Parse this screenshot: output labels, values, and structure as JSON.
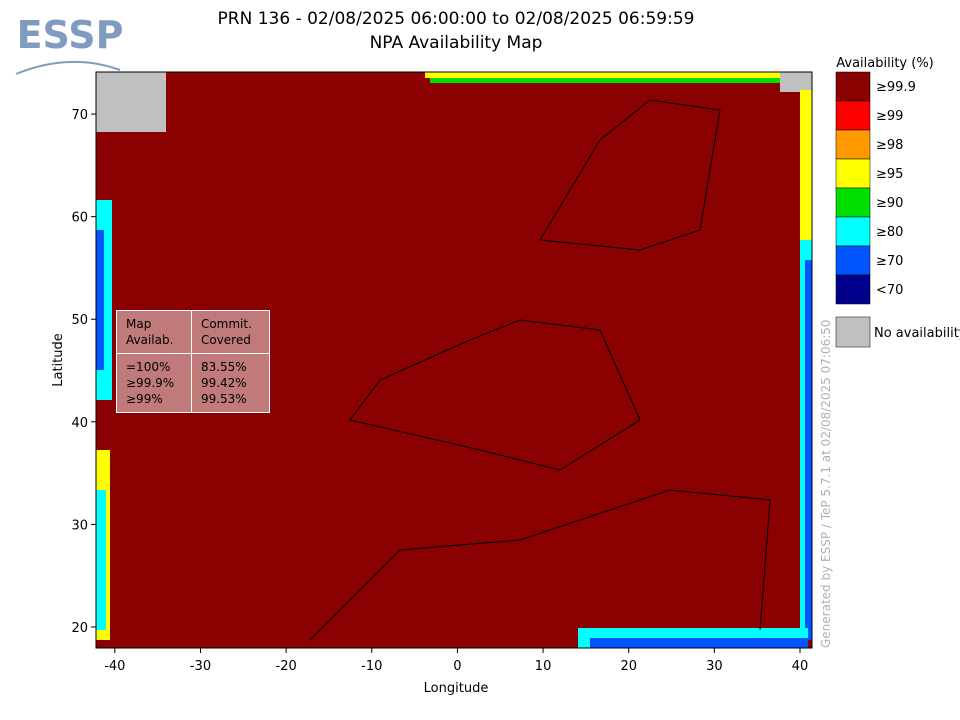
{
  "header": {
    "logo": "ESSP",
    "title": "PRN 136 - 02/08/2025 06:00:00 to 02/08/2025 06:59:59",
    "subtitle": "NPA Availability Map"
  },
  "map": {
    "xlabel": "Longitude",
    "ylabel": "Latitude",
    "xlim": [
      -42.2,
      41.4
    ],
    "ylim": [
      17.95,
      74.1
    ],
    "xticks": [
      -40,
      -30,
      -20,
      -10,
      0,
      10,
      20,
      30,
      40
    ],
    "yticks": [
      20,
      30,
      40,
      50,
      60,
      70
    ]
  },
  "legend": {
    "title": "Availability (%)",
    "items": [
      {
        "label": "≥99.9",
        "color": "#8b0000"
      },
      {
        "label": "≥99",
        "color": "#ff0000"
      },
      {
        "label": "≥98",
        "color": "#ff9900"
      },
      {
        "label": "≥95",
        "color": "#ffff00"
      },
      {
        "label": "≥90",
        "color": "#00e000"
      },
      {
        "label": "≥80",
        "color": "#00ffff"
      },
      {
        "label": "≥70",
        "color": "#0055ff"
      },
      {
        "label": "<70",
        "color": "#00008b"
      }
    ],
    "none": {
      "label": "No availability",
      "color": "#c0c0c0"
    }
  },
  "table": {
    "headers": [
      [
        "Map",
        "Availab."
      ],
      [
        "Commit.",
        "Covered"
      ]
    ],
    "rows": [
      [
        "=100%",
        "83.55%"
      ],
      [
        "≥99.9%",
        "99.42%"
      ],
      [
        "≥99%",
        "99.53%"
      ]
    ]
  },
  "footer": "Generated by ESSP / TeP 5.7.1 at 02/08/2025 07:06:50"
}
